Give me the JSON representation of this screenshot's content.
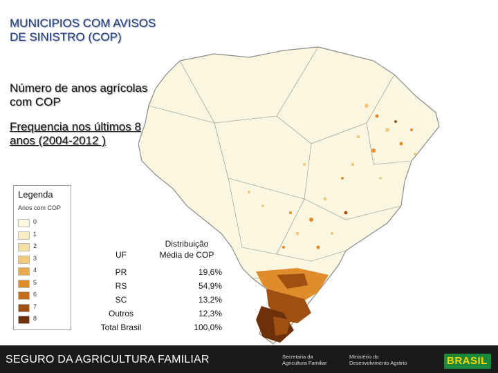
{
  "title": "MUNICIPIOS COM AVISOS DE SINISTRO (COP)",
  "subtitle": "Número de anos agrícolas com COP",
  "subtitle2": "Frequencia nos últimos 8 anos (2004-2012 )",
  "legend": {
    "title": "Legenda",
    "subtitle": "Anos com COP",
    "items": [
      {
        "label": "0",
        "color": "#fbf6e0"
      },
      {
        "label": "1",
        "color": "#f9edc4"
      },
      {
        "label": "2",
        "color": "#f6dfa3"
      },
      {
        "label": "3",
        "color": "#f1c97a"
      },
      {
        "label": "4",
        "color": "#eaa94d"
      },
      {
        "label": "5",
        "color": "#de8c2c"
      },
      {
        "label": "6",
        "color": "#c56d19"
      },
      {
        "label": "7",
        "color": "#a04f12"
      },
      {
        "label": "8",
        "color": "#6e300b"
      }
    ]
  },
  "table": {
    "header_uf": "UF",
    "header_dist_line1": "Distribuição",
    "header_dist_line2": "Média de COP",
    "rows": [
      {
        "uf": "PR",
        "value": "19,6%"
      },
      {
        "uf": "RS",
        "value": "54,9%"
      },
      {
        "uf": "SC",
        "value": "13,2%"
      },
      {
        "uf": "Outros",
        "value": "12,3%"
      },
      {
        "uf": "Total Brasil",
        "value": "100,0%"
      }
    ]
  },
  "footer": {
    "title": "SEGURO DA AGRICULTURA FAMILIAR",
    "logo1_line1": "Secretaria da",
    "logo1_line2": "Agricultura Familiar",
    "logo2_line1": "Ministério do",
    "logo2_line2": "Desenvolvimento Agrário",
    "brasil": "BRASIL"
  },
  "map": {
    "base_color": "#fbf6e0",
    "border_color": "#8a8a8a",
    "low_color": "#f1c97a",
    "mid_color": "#de8c2c",
    "high_color": "#a04f12",
    "max_color": "#6e300b"
  }
}
